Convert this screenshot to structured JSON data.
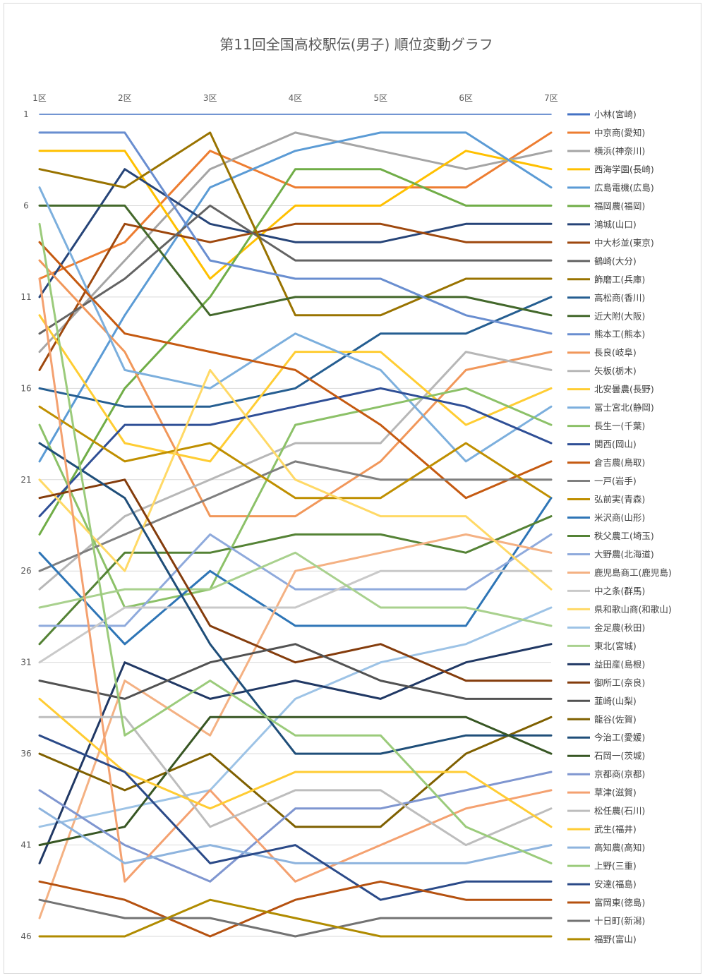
{
  "chart_data": {
    "type": "line",
    "title": "第11回全国高校駅伝(男子) 順位変動グラフ",
    "xlabel": "",
    "ylabel": "",
    "categories": [
      "1区",
      "2区",
      "3区",
      "4区",
      "5区",
      "6区",
      "7区"
    ],
    "y_tick_labels": [
      "1",
      "6",
      "11",
      "16",
      "21",
      "26",
      "31",
      "36",
      "41",
      "46"
    ],
    "ylim": [
      1,
      46
    ],
    "y_inverted": true,
    "grid": true,
    "legend_position": "right",
    "series": [
      {
        "name": "小林(宮崎)",
        "color": "#4472C4",
        "values": [
          1,
          1,
          1,
          1,
          1,
          1,
          1
        ]
      },
      {
        "name": "中京商(愛知)",
        "color": "#ED7D31",
        "values": [
          10,
          8,
          3,
          5,
          5,
          5,
          2
        ]
      },
      {
        "name": "横浜(神奈川)",
        "color": "#A5A5A5",
        "values": [
          14,
          9,
          4,
          2,
          3,
          4,
          3
        ]
      },
      {
        "name": "西海学園(長崎)",
        "color": "#FFC000",
        "values": [
          3,
          3,
          10,
          6,
          6,
          3,
          4
        ]
      },
      {
        "name": "広島電機(広島)",
        "color": "#5B9BD5",
        "values": [
          20,
          12,
          5,
          3,
          2,
          2,
          5
        ]
      },
      {
        "name": "福岡農(福岡)",
        "color": "#70AD47",
        "values": [
          24,
          16,
          11,
          4,
          4,
          6,
          6
        ]
      },
      {
        "name": "鴻城(山口)",
        "color": "#264478",
        "values": [
          11,
          4,
          7,
          8,
          8,
          7,
          7
        ]
      },
      {
        "name": "中大杉並(東京)",
        "color": "#9E480E",
        "values": [
          15,
          7,
          8,
          7,
          7,
          8,
          8
        ]
      },
      {
        "name": "鶴崎(大分)",
        "color": "#636363",
        "values": [
          13,
          10,
          6,
          9,
          9,
          9,
          9
        ]
      },
      {
        "name": "飾磨工(兵庫)",
        "color": "#997300",
        "values": [
          4,
          5,
          2,
          12,
          12,
          10,
          10
        ]
      },
      {
        "name": "高松商(香川)",
        "color": "#255E91",
        "values": [
          16,
          17,
          17,
          16,
          13,
          13,
          11
        ]
      },
      {
        "name": "近大附(大阪)",
        "color": "#43682B",
        "values": [
          6,
          6,
          12,
          11,
          11,
          11,
          12
        ]
      },
      {
        "name": "熊本工(熊本)",
        "color": "#698ED0",
        "values": [
          2,
          2,
          9,
          10,
          10,
          12,
          13
        ]
      },
      {
        "name": "長良(岐阜)",
        "color": "#F1975A",
        "values": [
          9,
          14,
          23,
          23,
          20,
          15,
          14
        ]
      },
      {
        "name": "矢板(栃木)",
        "color": "#B7B7B7",
        "values": [
          27,
          23,
          21,
          19,
          19,
          14,
          15
        ]
      },
      {
        "name": "北安曇農(長野)",
        "color": "#FFCD33",
        "values": [
          12,
          19,
          20,
          14,
          14,
          18,
          16
        ]
      },
      {
        "name": "冨士宮北(静岡)",
        "color": "#7CAFDD",
        "values": [
          5,
          15,
          16,
          13,
          15,
          20,
          17
        ]
      },
      {
        "name": "長生一(千葉)",
        "color": "#8CC168",
        "values": [
          18,
          28,
          27,
          18,
          17,
          16,
          18
        ]
      },
      {
        "name": "関西(岡山)",
        "color": "#2F4F96",
        "values": [
          23,
          18,
          18,
          17,
          16,
          17,
          19
        ]
      },
      {
        "name": "倉吉農(鳥取)",
        "color": "#C55A11",
        "values": [
          8,
          13,
          14,
          15,
          18,
          22,
          20
        ]
      },
      {
        "name": "一戸(岩手)",
        "color": "#7F7F7F",
        "values": [
          26,
          24,
          22,
          20,
          21,
          21,
          21
        ]
      },
      {
        "name": "弘前実(青森)",
        "color": "#BF8F00",
        "values": [
          17,
          20,
          19,
          22,
          22,
          19,
          22
        ]
      },
      {
        "name": "米沢商(山形)",
        "color": "#2E75B6",
        "values": [
          25,
          30,
          26,
          29,
          29,
          29,
          22
        ]
      },
      {
        "name": "秩父農工(埼玉)",
        "color": "#548235",
        "values": [
          30,
          25,
          25,
          24,
          24,
          25,
          23
        ]
      },
      {
        "name": "大野農(北海道)",
        "color": "#8FAADC",
        "values": [
          29,
          29,
          24,
          27,
          27,
          27,
          24
        ]
      },
      {
        "name": "鹿児島商工(鹿児島)",
        "color": "#F4B183",
        "values": [
          45,
          32,
          35,
          26,
          25,
          24,
          25
        ]
      },
      {
        "name": "中之条(群馬)",
        "color": "#C9C9C9",
        "values": [
          31,
          28,
          28,
          28,
          26,
          26,
          26
        ]
      },
      {
        "name": "県和歌山商(和歌山)",
        "color": "#FFD966",
        "values": [
          21,
          26,
          15,
          21,
          23,
          23,
          27
        ]
      },
      {
        "name": "金足農(秋田)",
        "color": "#9DC3E6",
        "values": [
          40,
          39,
          38,
          33,
          31,
          30,
          28
        ]
      },
      {
        "name": "東北(宮城)",
        "color": "#A9D18E",
        "values": [
          28,
          27,
          27,
          25,
          28,
          28,
          29
        ]
      },
      {
        "name": "益田産(島根)",
        "color": "#203864",
        "values": [
          42,
          31,
          33,
          32,
          33,
          31,
          30
        ]
      },
      {
        "name": "御所工(奈良)",
        "color": "#843C0C",
        "values": [
          22,
          21,
          29,
          31,
          30,
          32,
          32
        ]
      },
      {
        "name": "韮崎(山梨)",
        "color": "#525252",
        "values": [
          32,
          33,
          31,
          30,
          32,
          33,
          33
        ]
      },
      {
        "name": "龍谷(佐賀)",
        "color": "#7F6000",
        "values": [
          36,
          38,
          36,
          40,
          40,
          36,
          34
        ]
      },
      {
        "name": "今治工(愛媛)",
        "color": "#1F4E79",
        "values": [
          19,
          22,
          30,
          36,
          36,
          35,
          35
        ]
      },
      {
        "name": "石岡一(茨城)",
        "color": "#375623",
        "values": [
          41,
          40,
          34,
          34,
          34,
          34,
          36
        ]
      },
      {
        "name": "京都商(京都)",
        "color": "#7F96D0",
        "values": [
          38,
          41,
          43,
          39,
          39,
          38,
          37
        ]
      },
      {
        "name": "草津(滋賀)",
        "color": "#F4A170",
        "values": [
          10,
          43,
          38,
          43,
          41,
          39,
          38
        ]
      },
      {
        "name": "松任農(石川)",
        "color": "#BDBDBD",
        "values": [
          34,
          34,
          40,
          38,
          38,
          41,
          39
        ]
      },
      {
        "name": "武生(福井)",
        "color": "#FFCC33",
        "values": [
          33,
          37,
          39,
          37,
          37,
          37,
          40
        ]
      },
      {
        "name": "高知農(高知)",
        "color": "#8EB4DE",
        "values": [
          39,
          42,
          41,
          42,
          42,
          42,
          41
        ]
      },
      {
        "name": "上野(三重)",
        "color": "#9BCB7B",
        "values": [
          7,
          35,
          32,
          35,
          35,
          40,
          42
        ]
      },
      {
        "name": "安達(福島)",
        "color": "#2B4A88",
        "values": [
          35,
          37,
          42,
          41,
          44,
          43,
          43
        ]
      },
      {
        "name": "富岡東(徳島)",
        "color": "#B5510F",
        "values": [
          43,
          44,
          46,
          44,
          43,
          44,
          44
        ]
      },
      {
        "name": "十日町(新潟)",
        "color": "#737373",
        "values": [
          44,
          45,
          45,
          46,
          45,
          45,
          45
        ]
      },
      {
        "name": "福野(富山)",
        "color": "#B08B00",
        "values": [
          46,
          46,
          44,
          45,
          46,
          46,
          46
        ]
      }
    ]
  }
}
